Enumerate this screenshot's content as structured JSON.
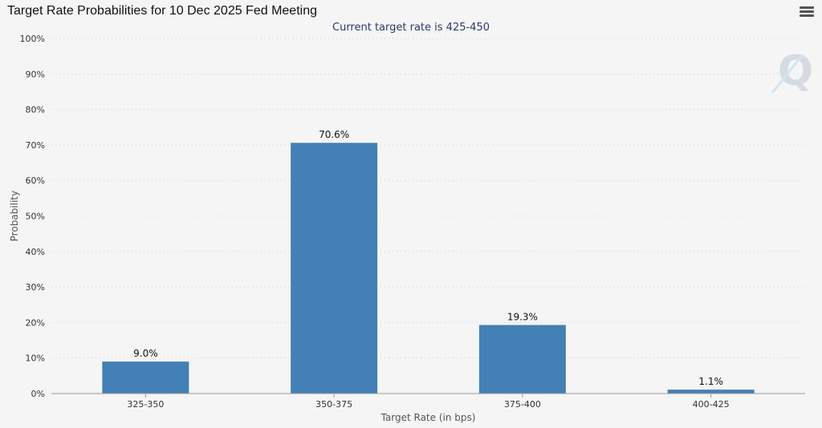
{
  "header": {
    "title": "Target Rate Probabilities for 10 Dec 2025 Fed Meeting",
    "subtitle": "Current target rate is 425-450"
  },
  "toolbar": {
    "menu_icon": "hamburger-menu-icon"
  },
  "watermark": {
    "icon": "q-logo-icon",
    "text": "Q"
  },
  "colors": {
    "bar": "#4380b5",
    "grid": "#cfcfcf",
    "axis": "#999999",
    "background": "#f5f5f5"
  },
  "chart_data": {
    "type": "bar",
    "title": "Target Rate Probabilities for 10 Dec 2025 Fed Meeting",
    "subtitle": "Current target rate is 425-450",
    "xlabel": "Target Rate (in bps)",
    "ylabel": "Probability",
    "categories": [
      "325-350",
      "350-375",
      "375-400",
      "400-425"
    ],
    "values": [
      9.0,
      70.6,
      19.3,
      1.1
    ],
    "data_labels": [
      "9.0%",
      "70.6%",
      "19.3%",
      "1.1%"
    ],
    "ylim": [
      0,
      100
    ],
    "yticks": [
      0,
      10,
      20,
      30,
      40,
      50,
      60,
      70,
      80,
      90,
      100
    ],
    "ytick_labels": [
      "0%",
      "10%",
      "20%",
      "30%",
      "40%",
      "50%",
      "60%",
      "70%",
      "80%",
      "90%",
      "100%"
    ],
    "grid": true,
    "legend": "none"
  }
}
